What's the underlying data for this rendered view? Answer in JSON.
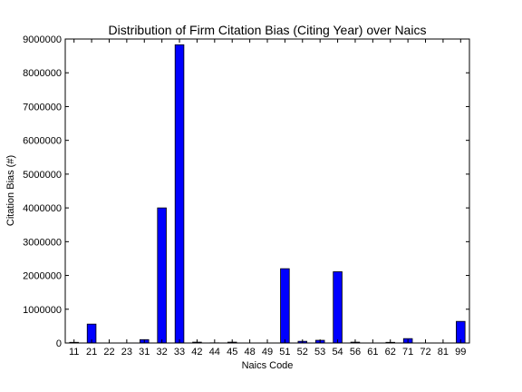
{
  "chart_data": {
    "type": "bar",
    "title": "Distribution of Firm Citation Bias (Citing Year) over Naics",
    "xlabel": "Naics Code",
    "ylabel": "Citation Bias (#)",
    "ylim": [
      0,
      9000000
    ],
    "yticks": [
      "0",
      "1000000",
      "2000000",
      "3000000",
      "4000000",
      "5000000",
      "6000000",
      "7000000",
      "8000000",
      "9000000"
    ],
    "grid": false,
    "bar_color": "#0000ff",
    "categories": [
      "11",
      "21",
      "22",
      "23",
      "31",
      "32",
      "33",
      "42",
      "44",
      "45",
      "48",
      "49",
      "51",
      "52",
      "53",
      "54",
      "56",
      "61",
      "62",
      "71",
      "72",
      "81",
      "99"
    ],
    "values": [
      20000,
      560000,
      0,
      0,
      100000,
      4000000,
      8830000,
      25000,
      5000,
      25000,
      0,
      0,
      2200000,
      50000,
      80000,
      2110000,
      25000,
      0,
      20000,
      130000,
      0,
      0,
      640000
    ]
  }
}
